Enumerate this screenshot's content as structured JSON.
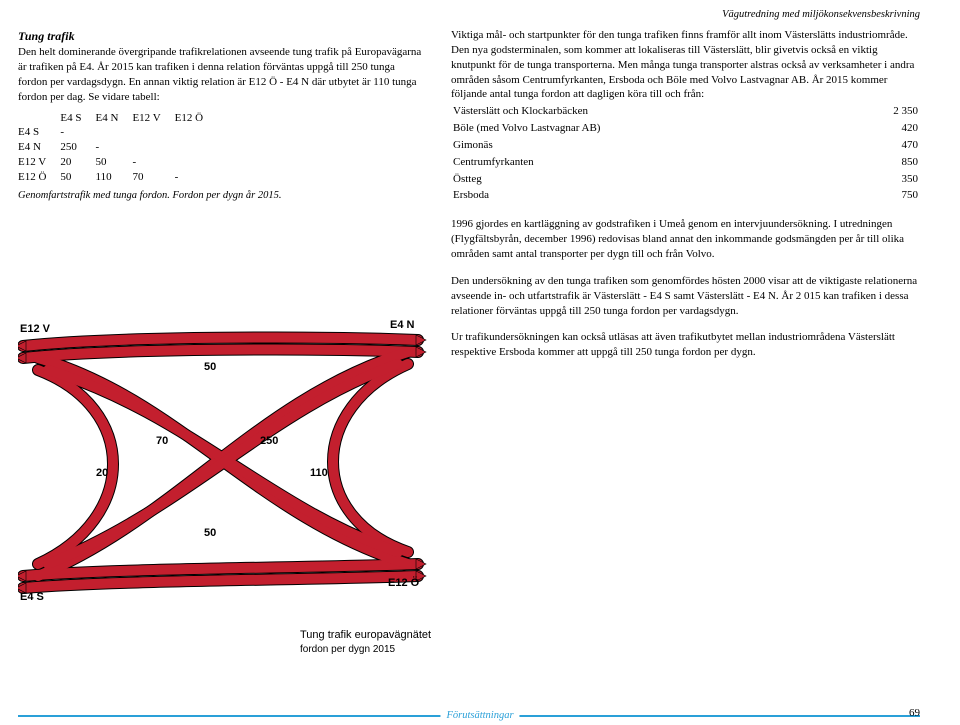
{
  "header": {
    "right": "Vägutredning med miljökonsekvensbeskrivning"
  },
  "left": {
    "title": "Tung trafik",
    "p1": "Den helt dominerande övergripande trafikrelationen avseende tung trafik på Europavägarna är trafiken på E4. År 2015 kan trafiken i denna relation förväntas uppgå till 250 tunga fordon per vardagsdygn. En annan viktig relation är E12 Ö - E4 N där utbytet är 110 tunga fordon per dag. Se vidare tabell:",
    "table": {
      "cols": [
        "",
        "E4 S",
        "E4 N",
        "E12 V",
        "E12 Ö"
      ],
      "rows": [
        [
          "E4 S",
          "-",
          "",
          "",
          ""
        ],
        [
          "E4 N",
          "250",
          "-",
          "",
          ""
        ],
        [
          "E12 V",
          "20",
          "50",
          "-",
          ""
        ],
        [
          "E12 Ö",
          "50",
          "110",
          "70",
          "-"
        ]
      ],
      "caption": "Genomfartstrafik med tunga fordon. Fordon per dygn år 2015."
    }
  },
  "right": {
    "p1": "Viktiga mål- och startpunkter för den tunga trafiken finns framför allt inom Västerslätts industriområde. Den nya godsterminalen, som kommer att lokaliseras till Västerslätt, blir givetvis också en viktig knutpunkt för de tunga transporterna. Men många tunga transporter alstras också av verksamheter i andra områden såsom  Centrumfyrkanten, Ersboda och Böle med Volvo Lastvagnar AB. År 2015 kommer följande antal tunga fordon att dagligen köra till och från:",
    "dest": {
      "rows": [
        [
          "Västerslätt och Klockarbäcken",
          "2 350"
        ],
        [
          "Böle (med Volvo Lastvagnar AB)",
          "420"
        ],
        [
          "Gimonäs",
          "470"
        ],
        [
          "Centrumfyrkanten",
          "850"
        ],
        [
          "Östteg",
          "350"
        ],
        [
          "Ersboda",
          "750"
        ]
      ]
    },
    "p2": "1996 gjordes en kartläggning av godstrafiken i Umeå genom en intervjuundersökning. I utredningen (Flygfältsbyrån, december 1996) redovisas bland annat den inkommande godsmängden per år till olika områden samt antal transporter per dygn till och från Volvo.",
    "p3": "Den undersökning av den tunga trafiken som genomfördes hösten 2000 visar att de viktigaste relationerna avseende in- och utfartstrafik är Västerslätt - E4 S samt Västerslätt - E4 N. År 2 015 kan trafiken i dessa relationer förväntas uppgå till 250 tunga fordon per vardagsdygn.",
    "p4": "Ur trafikundersökningen kan också utläsas att även trafikutbytet mellan industriområdena Västerslätt respektive Ersboda kommer att uppgå till 250 tunga fordon per dygn."
  },
  "diagram": {
    "labels": {
      "e12v": "E12 V",
      "e4n": "E4 N",
      "e4s": "E4 S",
      "e12o": "E12 Ö",
      "v50a": "50",
      "v50b": "50",
      "v70": "70",
      "v250": "250",
      "v110": "110",
      "v20": "20"
    },
    "road_color": "#c31f2e",
    "road_border": "#000000",
    "road_width": 10,
    "caption1": "Tung trafik europavägnätet",
    "caption2": "fordon per dygn 2015"
  },
  "footer": {
    "center": "Förutsättningar",
    "page": "69"
  }
}
